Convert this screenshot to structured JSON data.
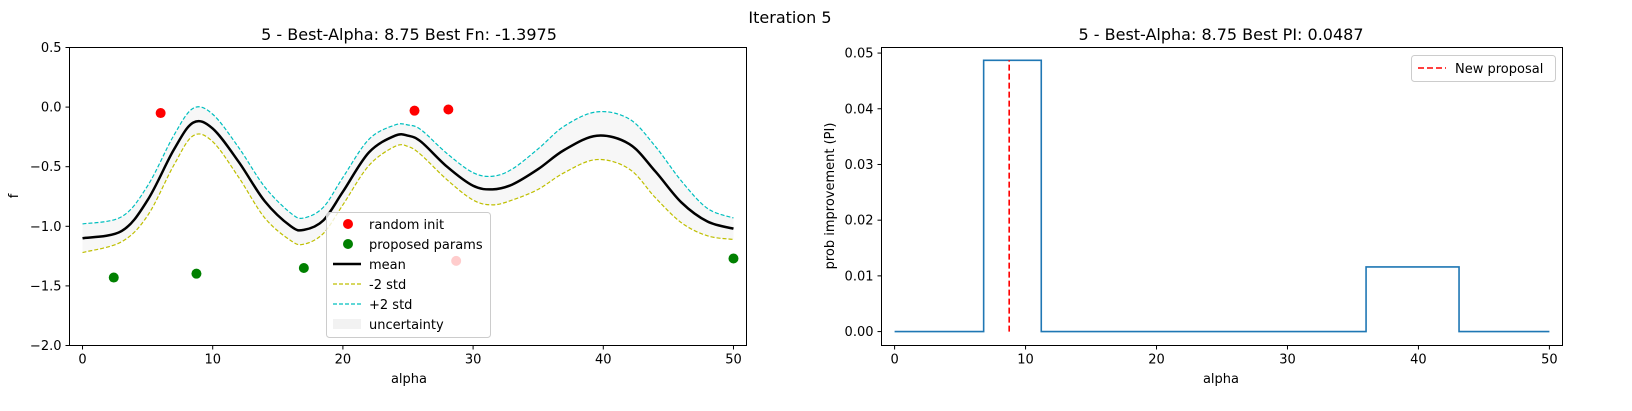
{
  "suptitle": "Iteration 5",
  "charts": [
    {
      "type": "line",
      "title": "5 - Best-Alpha: 8.75 Best Fn: -1.3975",
      "xlabel": "alpha",
      "ylabel": "f",
      "xlim": [
        -1,
        51
      ],
      "ylim": [
        -2.0,
        0.5
      ],
      "xticks": [
        "0",
        "10",
        "20",
        "30",
        "40",
        "50"
      ],
      "yticks": [
        "−2.0",
        "−1.5",
        "−1.0",
        "−0.5",
        "0.0",
        "0.5"
      ],
      "legend_position": "lower-center",
      "legend": [
        "random init",
        "proposed params",
        "mean",
        "-2 std",
        "+2 std",
        "uncertainty"
      ],
      "colors": {
        "random_init": "#ff0000",
        "proposed": "#008000",
        "mean": "#000000",
        "minus2": "#bfbf00",
        "plus2": "#00bfbf",
        "uncertainty": "#f2f2f2"
      }
    },
    {
      "type": "line",
      "title": "5 - Best-Alpha: 8.75 Best PI: 0.0487",
      "xlabel": "alpha",
      "ylabel": "prob improvement (PI)",
      "xlim": [
        -1,
        51
      ],
      "ylim": [
        -0.0025,
        0.051
      ],
      "xticks": [
        "0",
        "10",
        "20",
        "30",
        "40",
        "50"
      ],
      "yticks": [
        "0.00",
        "0.01",
        "0.02",
        "0.03",
        "0.04",
        "0.05"
      ],
      "legend_position": "top-right",
      "legend": [
        "New proposal"
      ],
      "colors": {
        "pi": "#1f77b4",
        "proposal": "#ff0000"
      }
    }
  ],
  "chart_data": [
    {
      "type": "line",
      "random_init": [
        {
          "x": 6.0,
          "y": -0.05
        },
        {
          "x": 25.5,
          "y": -0.03
        },
        {
          "x": 28.1,
          "y": -0.02
        },
        {
          "x": 28.7,
          "y": -1.29
        }
      ],
      "proposed_params": [
        {
          "x": 2.4,
          "y": -1.43
        },
        {
          "x": 8.75,
          "y": -1.3975
        },
        {
          "x": 17.0,
          "y": -1.35
        },
        {
          "x": 50.0,
          "y": -1.27
        }
      ],
      "mean": {
        "x": [
          0,
          3,
          5,
          7,
          8.5,
          10,
          12,
          14,
          16,
          17,
          18.5,
          20,
          22,
          24,
          25,
          26,
          28,
          30,
          31.5,
          33,
          35,
          37,
          39.5,
          42,
          44,
          46,
          48,
          50
        ],
        "y": [
          -1.1,
          -1.04,
          -0.78,
          -0.36,
          -0.13,
          -0.18,
          -0.46,
          -0.79,
          -1.0,
          -1.03,
          -0.95,
          -0.71,
          -0.38,
          -0.24,
          -0.24,
          -0.29,
          -0.5,
          -0.66,
          -0.69,
          -0.65,
          -0.52,
          -0.36,
          -0.24,
          -0.31,
          -0.54,
          -0.8,
          -0.96,
          -1.02
        ]
      },
      "minus_2_std": {
        "x": [
          0,
          3,
          5,
          7,
          8.5,
          10,
          12,
          14,
          16,
          17,
          18.5,
          20,
          22,
          24,
          25,
          26,
          28,
          30,
          31.5,
          33,
          35,
          37,
          39.5,
          42,
          44,
          46,
          48,
          50
        ],
        "y": [
          -1.22,
          -1.13,
          -0.91,
          -0.49,
          -0.24,
          -0.29,
          -0.59,
          -0.93,
          -1.12,
          -1.15,
          -1.06,
          -0.82,
          -0.49,
          -0.33,
          -0.33,
          -0.4,
          -0.61,
          -0.78,
          -0.82,
          -0.78,
          -0.69,
          -0.55,
          -0.44,
          -0.52,
          -0.76,
          -0.97,
          -1.08,
          -1.11
        ]
      },
      "plus_2_std": {
        "x": [
          0,
          3,
          5,
          7,
          8.5,
          10,
          12,
          14,
          16,
          17,
          18.5,
          20,
          22,
          24,
          25,
          26,
          28,
          30,
          31.5,
          33,
          35,
          37,
          39.5,
          42,
          44,
          46,
          48,
          50
        ],
        "y": [
          -0.98,
          -0.92,
          -0.66,
          -0.24,
          -0.01,
          -0.06,
          -0.34,
          -0.67,
          -0.89,
          -0.93,
          -0.84,
          -0.59,
          -0.27,
          -0.15,
          -0.15,
          -0.19,
          -0.39,
          -0.55,
          -0.58,
          -0.52,
          -0.35,
          -0.16,
          -0.04,
          -0.1,
          -0.33,
          -0.62,
          -0.85,
          -0.93
        ]
      }
    },
    {
      "type": "line",
      "pi": {
        "x": [
          0,
          6.8,
          6.8,
          11.2,
          11.2,
          36.0,
          36.0,
          43.1,
          43.1,
          50
        ],
        "y": [
          0,
          0,
          0.0487,
          0.0487,
          0,
          0,
          0.0116,
          0.0116,
          0,
          0
        ]
      },
      "new_proposal": {
        "x": 8.75,
        "y_range": [
          0,
          0.0487
        ]
      }
    }
  ]
}
